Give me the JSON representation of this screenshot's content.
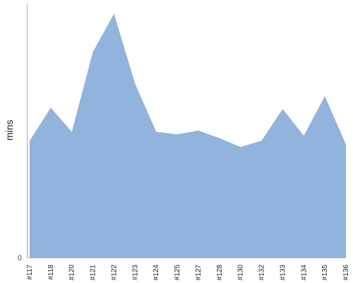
{
  "chart_data": {
    "type": "area",
    "title": "",
    "xlabel": "",
    "ylabel": "mins",
    "categories": [
      "#117",
      "#118",
      "#120",
      "#121",
      "#122",
      "#123",
      "#124",
      "#125",
      "#127",
      "#128",
      "#130",
      "#132",
      "#133",
      "#134",
      "#135",
      "#136"
    ],
    "series": [
      {
        "values": [
          9.2,
          11.8,
          9.9,
          16.2,
          19.2,
          13.7,
          9.9,
          9.7,
          10.0,
          9.4,
          8.7,
          9.2,
          11.7,
          9.6,
          12.7,
          8.9
        ]
      }
    ],
    "ylim": [
      0,
      20
    ],
    "y_ticks": [
      "0"
    ],
    "grid": false,
    "legend": "none",
    "colors": {
      "fill": "#92b3dc",
      "axis": "#aaaaaa"
    }
  }
}
